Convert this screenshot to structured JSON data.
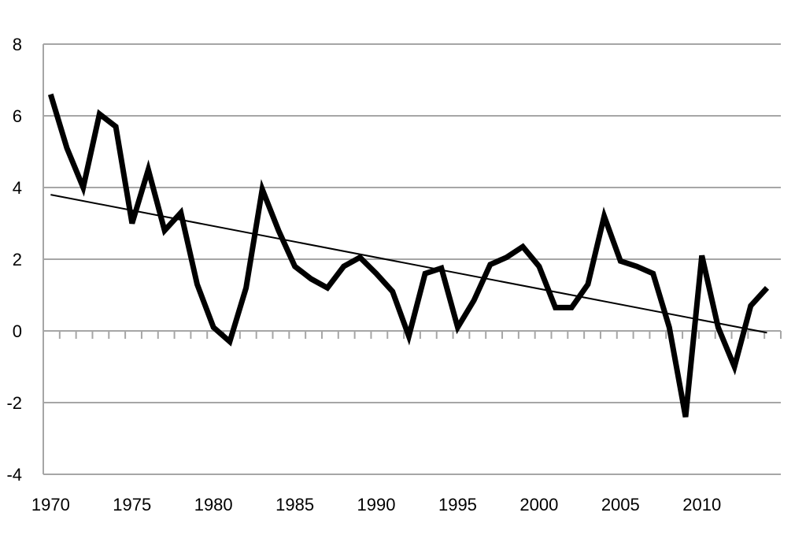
{
  "chart_data": {
    "type": "line",
    "title": "",
    "xlabel": "",
    "ylabel": "",
    "xlim": [
      1970,
      2014
    ],
    "ylim": [
      -4,
      8
    ],
    "grid": true,
    "y_ticks": [
      8,
      6,
      4,
      2,
      0,
      -2,
      -4
    ],
    "x_tick_labels": [
      1970,
      1975,
      1980,
      1985,
      1990,
      1995,
      2000,
      2005,
      2010
    ],
    "x": [
      1970,
      1971,
      1972,
      1973,
      1974,
      1975,
      1976,
      1977,
      1978,
      1979,
      1980,
      1981,
      1982,
      1983,
      1984,
      1985,
      1986,
      1987,
      1988,
      1989,
      1990,
      1991,
      1992,
      1993,
      1994,
      1995,
      1996,
      1997,
      1998,
      1999,
      2000,
      2001,
      2002,
      2003,
      2004,
      2005,
      2006,
      2007,
      2008,
      2009,
      2010,
      2011,
      2012,
      2013,
      2014
    ],
    "series": [
      {
        "values": [
          6.6,
          5.1,
          4.0,
          6.05,
          5.7,
          3.0,
          4.5,
          2.8,
          3.3,
          1.3,
          0.1,
          -0.3,
          1.2,
          3.95,
          2.8,
          1.8,
          1.45,
          1.2,
          1.8,
          2.05,
          1.6,
          1.1,
          -0.15,
          1.6,
          1.75,
          0.1,
          0.85,
          1.85,
          2.05,
          2.35,
          1.8,
          0.65,
          0.65,
          1.3,
          3.2,
          1.95,
          1.8,
          1.6,
          0.1,
          -2.4,
          2.1,
          0.1,
          -1.0,
          0.7,
          1.2
        ],
        "color": "#000000"
      }
    ],
    "trendline": {
      "x": [
        1970,
        2014
      ],
      "values": [
        3.8,
        -0.05
      ],
      "color": "#000000"
    },
    "gridline_color": "#a6a6a6"
  }
}
